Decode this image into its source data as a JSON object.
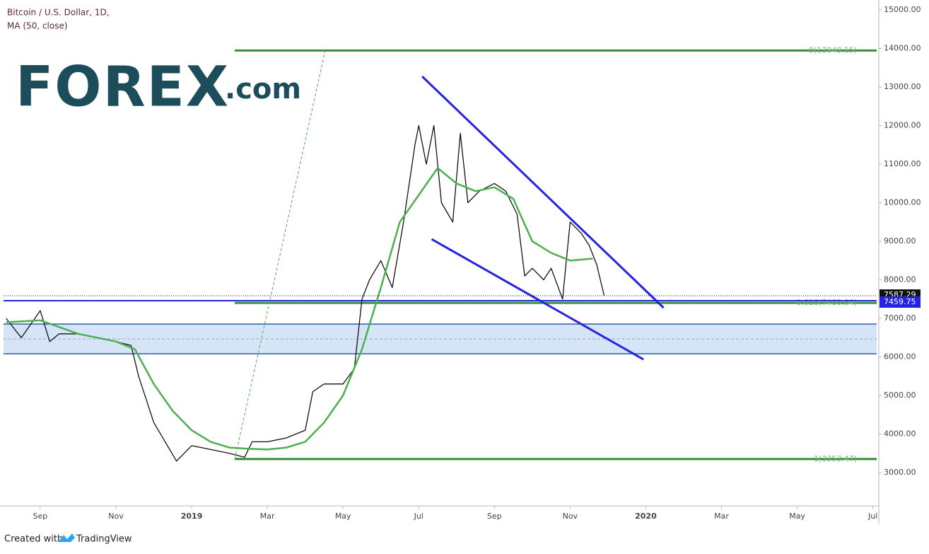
{
  "chart_data": {
    "type": "line",
    "title": "Bitcoin / U.S. Dollar, 1D,",
    "watermark": [
      "FOREX",
      ".com"
    ],
    "footer": [
      "Created with",
      "TradingView"
    ],
    "xlim": [
      -0.97,
      22.1
    ],
    "xticks": [
      {
        "value": 0,
        "label": "Sep"
      },
      {
        "value": 2,
        "label": "Nov"
      },
      {
        "value": 4,
        "label": "2019"
      },
      {
        "value": 6,
        "label": "Mar"
      },
      {
        "value": 8,
        "label": "May"
      },
      {
        "value": 10,
        "label": "Jul"
      },
      {
        "value": 12,
        "label": "Sep"
      },
      {
        "value": 14,
        "label": "Nov"
      },
      {
        "value": 16,
        "label": "2020"
      },
      {
        "value": 18,
        "label": "Mar"
      },
      {
        "value": 20,
        "label": "May"
      },
      {
        "value": 22,
        "label": "Jul"
      }
    ],
    "ylim": [
      2138,
      15165
    ],
    "yticks": [
      {
        "value": 3000,
        "label": "3000.00"
      },
      {
        "value": 4000,
        "label": "4000.00"
      },
      {
        "value": 5000,
        "label": "5000.00"
      },
      {
        "value": 6000,
        "label": "6000.00"
      },
      {
        "value": 7000,
        "label": "7000.00"
      },
      {
        "value": 8000,
        "label": "8000.00"
      },
      {
        "value": 9000,
        "label": "9000.00"
      },
      {
        "value": 10000,
        "label": "10000.00"
      },
      {
        "value": 11000,
        "label": "11000.00"
      },
      {
        "value": 12000,
        "label": "12000.00"
      },
      {
        "value": 13000,
        "label": "13000.00"
      },
      {
        "value": 14000,
        "label": "14000.00"
      },
      {
        "value": 15000,
        "label": "15000.00"
      }
    ],
    "series": [
      {
        "name": "Bitcoin / U.S. Dollar, 1D,",
        "color": "#111111",
        "x": [
          -0.9,
          -0.5,
          0,
          0.25,
          0.5,
          1,
          1.5,
          2,
          2.4,
          2.6,
          3,
          3.3,
          3.6,
          4,
          4.5,
          5,
          5.4,
          5.6,
          6,
          6.5,
          7,
          7.2,
          7.5,
          8,
          8.3,
          8.5,
          8.7,
          9,
          9.3,
          9.6,
          9.9,
          10,
          10.2,
          10.4,
          10.6,
          10.9,
          11.1,
          11.3,
          11.6,
          12,
          12.3,
          12.6,
          12.8,
          13,
          13.3,
          13.5,
          13.8,
          14,
          14.3,
          14.5,
          14.7,
          14.9
        ],
        "values": [
          7000,
          6500,
          7200,
          6400,
          6600,
          6600,
          6500,
          6400,
          6300,
          5500,
          4300,
          3800,
          3300,
          3700,
          3600,
          3500,
          3400,
          3800,
          3800,
          3900,
          4100,
          5100,
          5300,
          5300,
          5700,
          7500,
          8000,
          8500,
          7800,
          9500,
          11500,
          12000,
          11000,
          12000,
          10000,
          9500,
          11800,
          10000,
          10300,
          10500,
          10300,
          9700,
          8100,
          8300,
          8000,
          8300,
          7500,
          9500,
          9200,
          8900,
          8400,
          7587.29
        ]
      },
      {
        "name": "MA (50, close)",
        "color": "#4caf50",
        "x": [
          -0.9,
          0,
          1,
          2,
          2.5,
          3,
          3.5,
          4,
          4.5,
          5,
          5.5,
          6,
          6.5,
          7,
          7.5,
          8,
          8.5,
          9,
          9.5,
          10,
          10.5,
          11,
          11.5,
          12,
          12.5,
          13,
          13.5,
          14,
          14.6
        ],
        "values": [
          6900,
          6950,
          6600,
          6400,
          6200,
          5300,
          4600,
          4100,
          3800,
          3650,
          3620,
          3600,
          3650,
          3800,
          4300,
          5000,
          6200,
          7800,
          9500,
          10200,
          10900,
          10500,
          10300,
          10400,
          10100,
          9000,
          8700,
          8500,
          8550
        ]
      }
    ],
    "levels": [
      {
        "label": "0(13948.15)",
        "value": 13948.15,
        "x_start": 5.14,
        "color": "#388e3c"
      },
      {
        "label": "0.618(7400.64)",
        "value": 7400.64,
        "x_start": 5.14,
        "color": "#388e3c"
      },
      {
        "label": "1(3353.47)",
        "value": 3353.47,
        "x_start": 5.14,
        "color": "#388e3c"
      }
    ],
    "zones": [
      {
        "top": 6853,
        "bottom": 6083,
        "color": "#2a5caa"
      }
    ],
    "trendlines": [
      {
        "x": [
          10.09,
          16.47
        ],
        "y": [
          13275,
          7275
        ],
        "color": "#2323e0"
      },
      {
        "x": [
          10.34,
          15.94
        ],
        "y": [
          9055,
          5936
        ],
        "color": "#2323e0"
      },
      {
        "x": [
          5.14,
          7.53
        ],
        "y": [
          3353,
          13948
        ],
        "color": "#4caf50",
        "dashed": true
      }
    ],
    "price_labels": [
      {
        "value": 7587.29,
        "color": "#111111",
        "dotted": true
      },
      {
        "value": 7459.75,
        "color": "#2323e0"
      }
    ]
  }
}
